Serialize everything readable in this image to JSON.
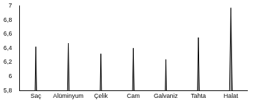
{
  "chart_data": {
    "type": "bar",
    "categories": [
      "Saç",
      "Alüminyum",
      "Çelik",
      "Cam",
      "Galvaniz",
      "Tahta",
      "Halat"
    ],
    "values": [
      6.42,
      6.47,
      6.32,
      6.4,
      6.24,
      6.55,
      6.97
    ],
    "color": "#c0c0c0",
    "ylim": [
      5.8,
      7
    ],
    "yticks": [
      {
        "value": 5.8,
        "label": "5,8"
      },
      6,
      {
        "value": 6.2,
        "label": "6,2"
      },
      {
        "value": 6.4,
        "label": "6,4"
      },
      {
        "value": 6.6,
        "label": "6,6"
      },
      {
        "value": 6.8,
        "label": "6,8"
      },
      7
    ],
    "grid": false
  }
}
